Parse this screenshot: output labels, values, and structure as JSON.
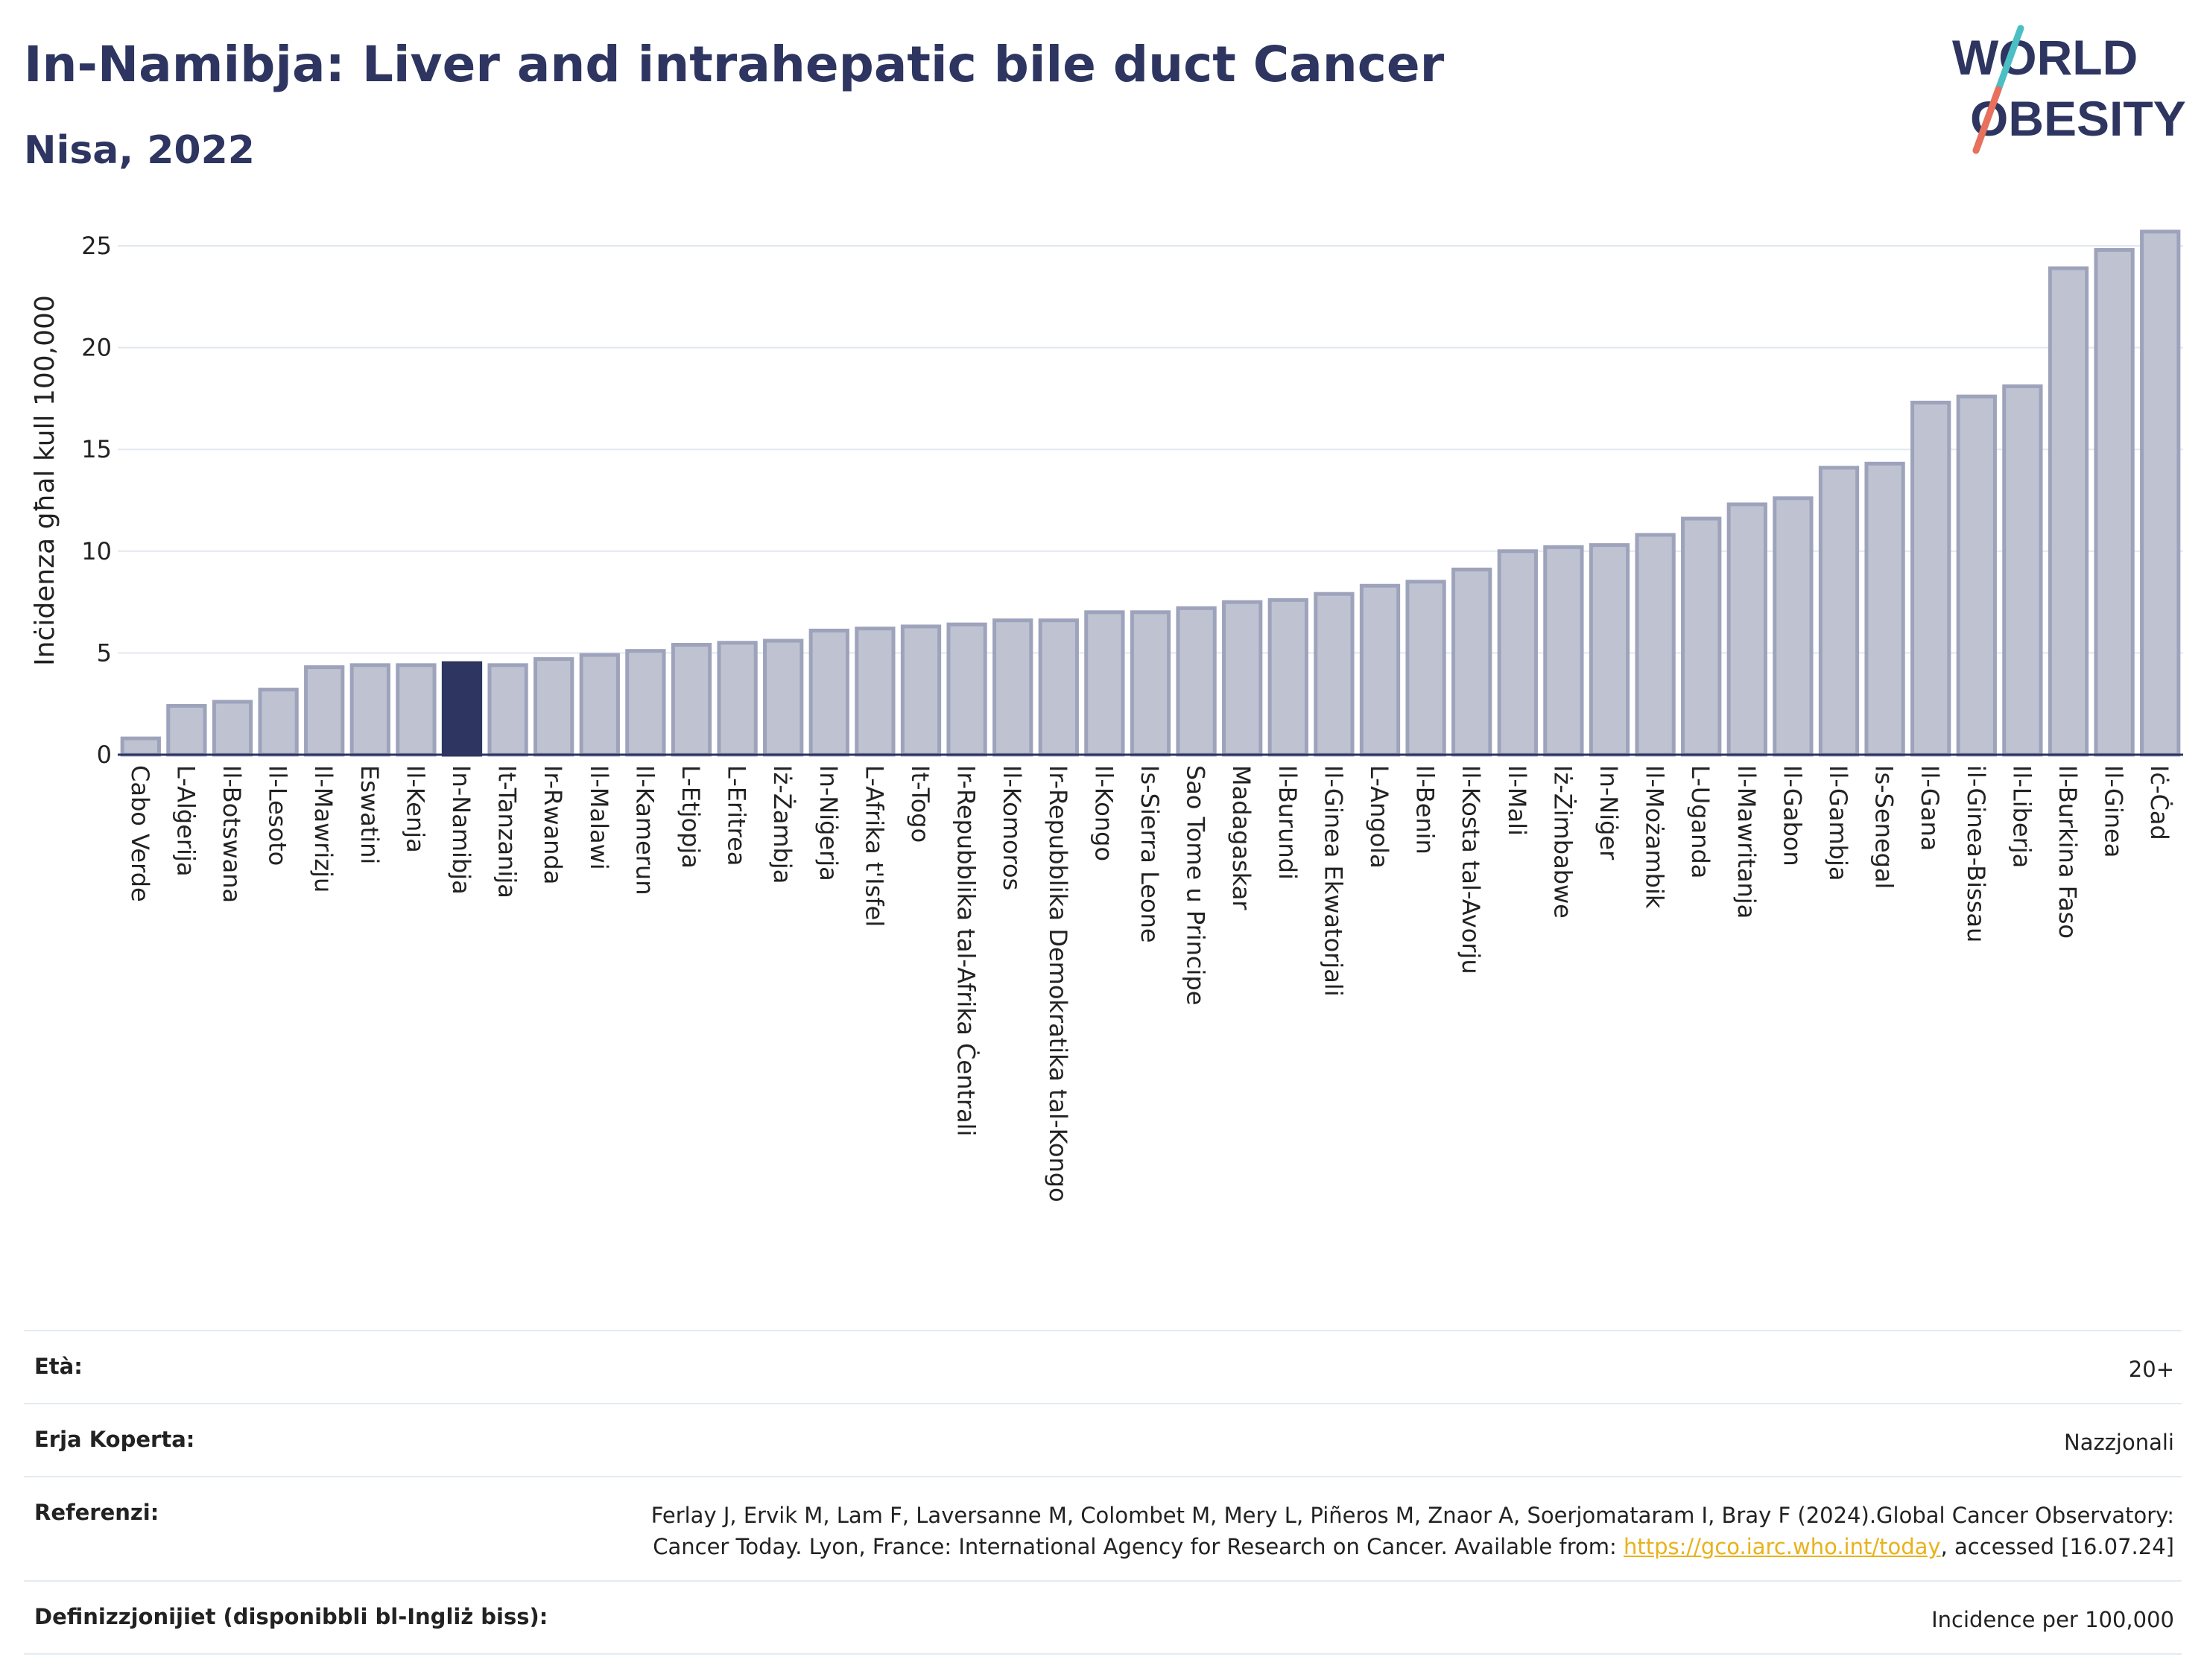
{
  "header": {
    "title": "In-Namibja: Liver and intrahepatic bile duct Cancer",
    "subtitle": "Nisa, 2022"
  },
  "logo": {
    "line1": "WORLD",
    "line2": "OBESITY"
  },
  "colors": {
    "bar": "#bfc3d1",
    "bar_stroke": "#9ea3bc",
    "highlight": "#2d3560",
    "title": "#2d3560",
    "link": "#e8b21c"
  },
  "chart_data": {
    "type": "bar",
    "title": "In-Namibja: Liver and intrahepatic bile duct Cancer",
    "subtitle": "Nisa, 2022",
    "ylabel": "Inċidenza għal kull 100,000",
    "xlabel": "",
    "ylim": [
      0,
      26
    ],
    "yticks": [
      0,
      5,
      10,
      15,
      20,
      25
    ],
    "grid": true,
    "highlight": "In-Namibja",
    "categories": [
      "Cabo Verde",
      "L-Alġerija",
      "Il-Botswana",
      "Il-Lesoto",
      "Il-Mawrizju",
      "Eswatini",
      "Il-Kenja",
      "In-Namibja",
      "It-Tanzanija",
      "Ir-Rwanda",
      "Il-Malawi",
      "Il-Kamerun",
      "L-Etjopja",
      "L-Eritrea",
      "Iż-Żambja",
      "In-Niġerja",
      "L-Afrika t'Isfel",
      "It-Togo",
      "Ir-Repubblika tal-Afrika Ċentrali",
      "Il-Komoros",
      "Ir-Repubblika Demokratika tal-Kongo",
      "Il-Kongo",
      "Is-Sierra Leone",
      "Sao Tome u Principe",
      "Madagaskar",
      "Il-Burundi",
      "Il-Ginea Ekwatorjali",
      "L-Angola",
      "Il-Benin",
      "Il-Kosta tal-Avorju",
      "Il-Mali",
      "Iż-Żimbabwe",
      "In-Niġer",
      "Il-Możambik",
      "L-Uganda",
      "Il-Mawritanja",
      "Il-Gabon",
      "Il-Gambja",
      "Is-Senegal",
      "Il-Gana",
      "il-Ginea-Bissau",
      "Il-Liberja",
      "Il-Burkina Faso",
      "Il-Ginea",
      "Iċ-Ċad"
    ],
    "values": [
      0.8,
      2.4,
      2.6,
      3.2,
      4.3,
      4.4,
      4.4,
      4.5,
      4.4,
      4.7,
      4.9,
      5.1,
      5.4,
      5.5,
      5.6,
      6.1,
      6.2,
      6.3,
      6.4,
      6.6,
      6.6,
      7.0,
      7.0,
      7.2,
      7.5,
      7.6,
      7.9,
      8.3,
      8.5,
      9.1,
      10.0,
      10.2,
      10.3,
      10.8,
      11.6,
      12.3,
      12.6,
      14.1,
      14.3,
      17.3,
      17.6,
      18.1,
      23.9,
      24.8,
      25.7
    ]
  },
  "info": {
    "age_label": "Età:",
    "age_value": "20+",
    "area_label": "Erja Koperta:",
    "area_value": "Nazzjonali",
    "ref_label": "Referenzi:",
    "ref_text1": "Ferlay J, Ervik M, Lam F, Laversanne M, Colombet M, Mery L, Piñeros M, Znaor A, Soerjomataram I, Bray F (2024).Global Cancer Observatory: Cancer Today. Lyon, France: International Agency for Research on Cancer. Available from: ",
    "ref_link": "https://gco.iarc.who.int/today",
    "ref_text2": ", accessed [16.07.24]",
    "def_label": "Definizzjonijiet (disponibbli bl-Ingliż biss):",
    "def_value": "Incidence per 100,000"
  }
}
